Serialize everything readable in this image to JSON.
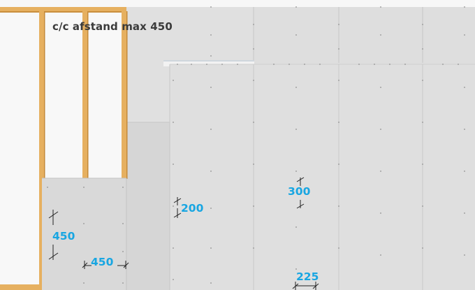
{
  "heading": "c/c afstand max 450",
  "dimensions": {
    "d_450_vertical": "450",
    "d_450_horizontal": "450",
    "d_200": "200",
    "d_300": "300",
    "d_225": "225"
  },
  "colors": {
    "dimension_text": "#18a6e2",
    "heading_text": "#3b3b3b",
    "timber": "#e6b060",
    "board": "#dcdcdc"
  }
}
